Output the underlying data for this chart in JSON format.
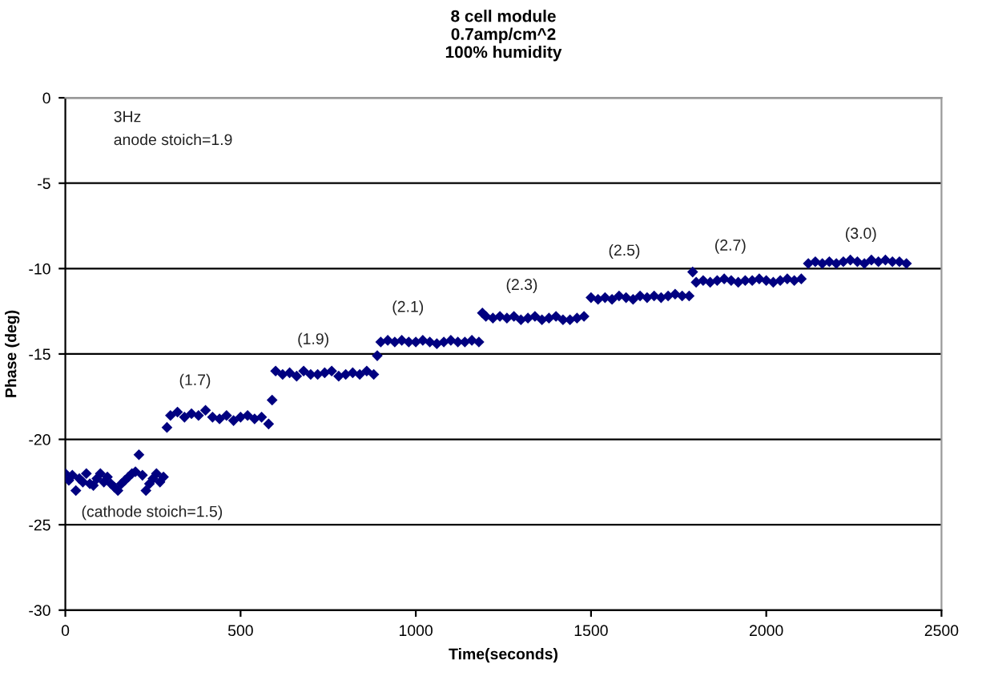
{
  "chart_data": {
    "type": "scatter",
    "title": "8 cell module\n0.7amp/cm^2\n100% humidity",
    "xlabel": "Time(seconds)",
    "ylabel": "Phase (deg)",
    "x": [
      0,
      10,
      20,
      30,
      40,
      50,
      60,
      70,
      80,
      90,
      100,
      110,
      120,
      130,
      140,
      150,
      160,
      170,
      180,
      190,
      200,
      210,
      220,
      230,
      240,
      250,
      260,
      270,
      280,
      290,
      300,
      320,
      340,
      360,
      380,
      400,
      420,
      440,
      460,
      480,
      500,
      520,
      540,
      560,
      580,
      590,
      600,
      620,
      640,
      660,
      680,
      700,
      720,
      740,
      760,
      780,
      800,
      820,
      840,
      860,
      880,
      890,
      900,
      920,
      940,
      960,
      980,
      1000,
      1020,
      1040,
      1060,
      1080,
      1100,
      1120,
      1140,
      1160,
      1180,
      1190,
      1200,
      1220,
      1240,
      1260,
      1280,
      1300,
      1320,
      1340,
      1360,
      1380,
      1400,
      1420,
      1440,
      1460,
      1480,
      1500,
      1520,
      1540,
      1560,
      1580,
      1600,
      1620,
      1640,
      1660,
      1680,
      1700,
      1720,
      1740,
      1760,
      1780,
      1790,
      1800,
      1820,
      1840,
      1860,
      1880,
      1900,
      1920,
      1940,
      1960,
      1980,
      2000,
      2020,
      2040,
      2060,
      2080,
      2100,
      2120,
      2140,
      2160,
      2180,
      2200,
      2220,
      2240,
      2260,
      2280,
      2300,
      2320,
      2340,
      2360,
      2380,
      2400
    ],
    "series": [
      {
        "color": "#000080",
        "values": [
          -22.0,
          -22.4,
          -22.1,
          -23.0,
          -22.3,
          -22.5,
          -22.0,
          -22.6,
          -22.7,
          -22.3,
          -22.0,
          -22.5,
          -22.2,
          -22.6,
          -22.8,
          -23.0,
          -22.6,
          -22.4,
          -22.2,
          -22.0,
          -21.9,
          -20.9,
          -22.1,
          -23.0,
          -22.6,
          -22.3,
          -22.0,
          -22.5,
          -22.2,
          -19.3,
          -18.6,
          -18.4,
          -18.7,
          -18.5,
          -18.6,
          -18.3,
          -18.7,
          -18.8,
          -18.6,
          -18.9,
          -18.7,
          -18.6,
          -18.8,
          -18.7,
          -19.1,
          -17.7,
          -16.0,
          -16.2,
          -16.1,
          -16.3,
          -16.0,
          -16.2,
          -16.2,
          -16.1,
          -16.0,
          -16.3,
          -16.2,
          -16.1,
          -16.2,
          -16.0,
          -16.2,
          -15.1,
          -14.3,
          -14.2,
          -14.3,
          -14.2,
          -14.3,
          -14.3,
          -14.2,
          -14.3,
          -14.4,
          -14.3,
          -14.2,
          -14.3,
          -14.3,
          -14.2,
          -14.3,
          -12.6,
          -12.8,
          -12.9,
          -12.8,
          -12.9,
          -12.8,
          -13.0,
          -12.9,
          -12.8,
          -13.0,
          -12.9,
          -12.8,
          -13.0,
          -13.0,
          -12.9,
          -12.8,
          -11.7,
          -11.8,
          -11.7,
          -11.8,
          -11.6,
          -11.7,
          -11.8,
          -11.6,
          -11.7,
          -11.6,
          -11.7,
          -11.6,
          -11.5,
          -11.6,
          -11.6,
          -10.2,
          -10.8,
          -10.7,
          -10.8,
          -10.7,
          -10.6,
          -10.7,
          -10.8,
          -10.7,
          -10.7,
          -10.6,
          -10.7,
          -10.8,
          -10.7,
          -10.6,
          -10.7,
          -10.6,
          -9.7,
          -9.6,
          -9.7,
          -9.6,
          -9.7,
          -9.6,
          -9.5,
          -9.6,
          -9.7,
          -9.5,
          -9.6,
          -9.5,
          -9.6,
          -9.6,
          -9.7
        ]
      }
    ],
    "annotations": [
      "3Hz",
      "anode stoich=1.9",
      "(cathode stoich=1.5)",
      "(1.7)",
      "(1.9)",
      "(2.1)",
      "(2.3)",
      "(2.5)",
      "(2.7)",
      "(3.0)"
    ],
    "xlim": [
      0,
      2500
    ],
    "xticks": [
      0,
      500,
      1000,
      1500,
      2000,
      2500
    ],
    "ylim": [
      -30,
      0
    ],
    "yticks": [
      -30,
      -25,
      -20,
      -15,
      -10,
      -5,
      0
    ],
    "grid": "y",
    "marker": "diamond",
    "legend": false
  }
}
